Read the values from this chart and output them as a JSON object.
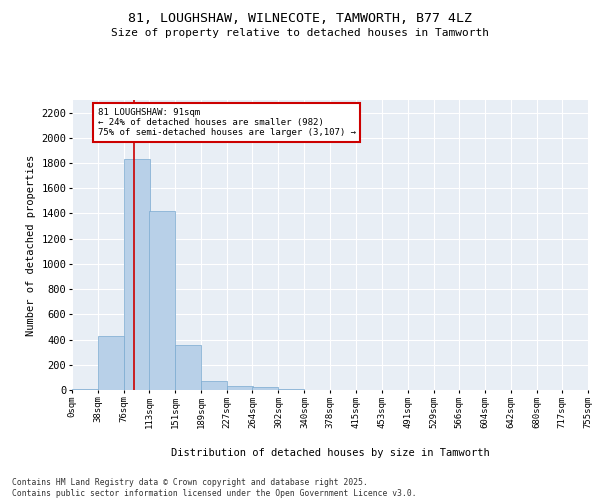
{
  "title_line1": "81, LOUGHSHAW, WILNECOTE, TAMWORTH, B77 4LZ",
  "title_line2": "Size of property relative to detached houses in Tamworth",
  "xlabel": "Distribution of detached houses by size in Tamworth",
  "ylabel": "Number of detached properties",
  "bar_color": "#b8d0e8",
  "bar_edge_color": "#7aaad0",
  "bin_edges": [
    0,
    38,
    76,
    113,
    151,
    189,
    227,
    264,
    302,
    340,
    378,
    415,
    453,
    491,
    529,
    566,
    604,
    642,
    680,
    717,
    755
  ],
  "bin_labels": [
    "0sqm",
    "38sqm",
    "76sqm",
    "113sqm",
    "151sqm",
    "189sqm",
    "227sqm",
    "264sqm",
    "302sqm",
    "340sqm",
    "378sqm",
    "415sqm",
    "453sqm",
    "491sqm",
    "529sqm",
    "566sqm",
    "604sqm",
    "642sqm",
    "680sqm",
    "717sqm",
    "755sqm"
  ],
  "bar_heights": [
    10,
    430,
    1830,
    1420,
    360,
    75,
    35,
    20,
    5,
    0,
    0,
    0,
    0,
    0,
    0,
    0,
    0,
    0,
    0,
    0
  ],
  "ylim": [
    0,
    2300
  ],
  "yticks": [
    0,
    200,
    400,
    600,
    800,
    1000,
    1200,
    1400,
    1600,
    1800,
    2000,
    2200
  ],
  "property_size": 91,
  "vline_color": "#cc0000",
  "annotation_title": "81 LOUGHSHAW: 91sqm",
  "annotation_line1": "← 24% of detached houses are smaller (982)",
  "annotation_line2": "75% of semi-detached houses are larger (3,107) →",
  "annotation_box_color": "#cc0000",
  "background_color": "#e8eef5",
  "footer_line1": "Contains HM Land Registry data © Crown copyright and database right 2025.",
  "footer_line2": "Contains public sector information licensed under the Open Government Licence v3.0."
}
